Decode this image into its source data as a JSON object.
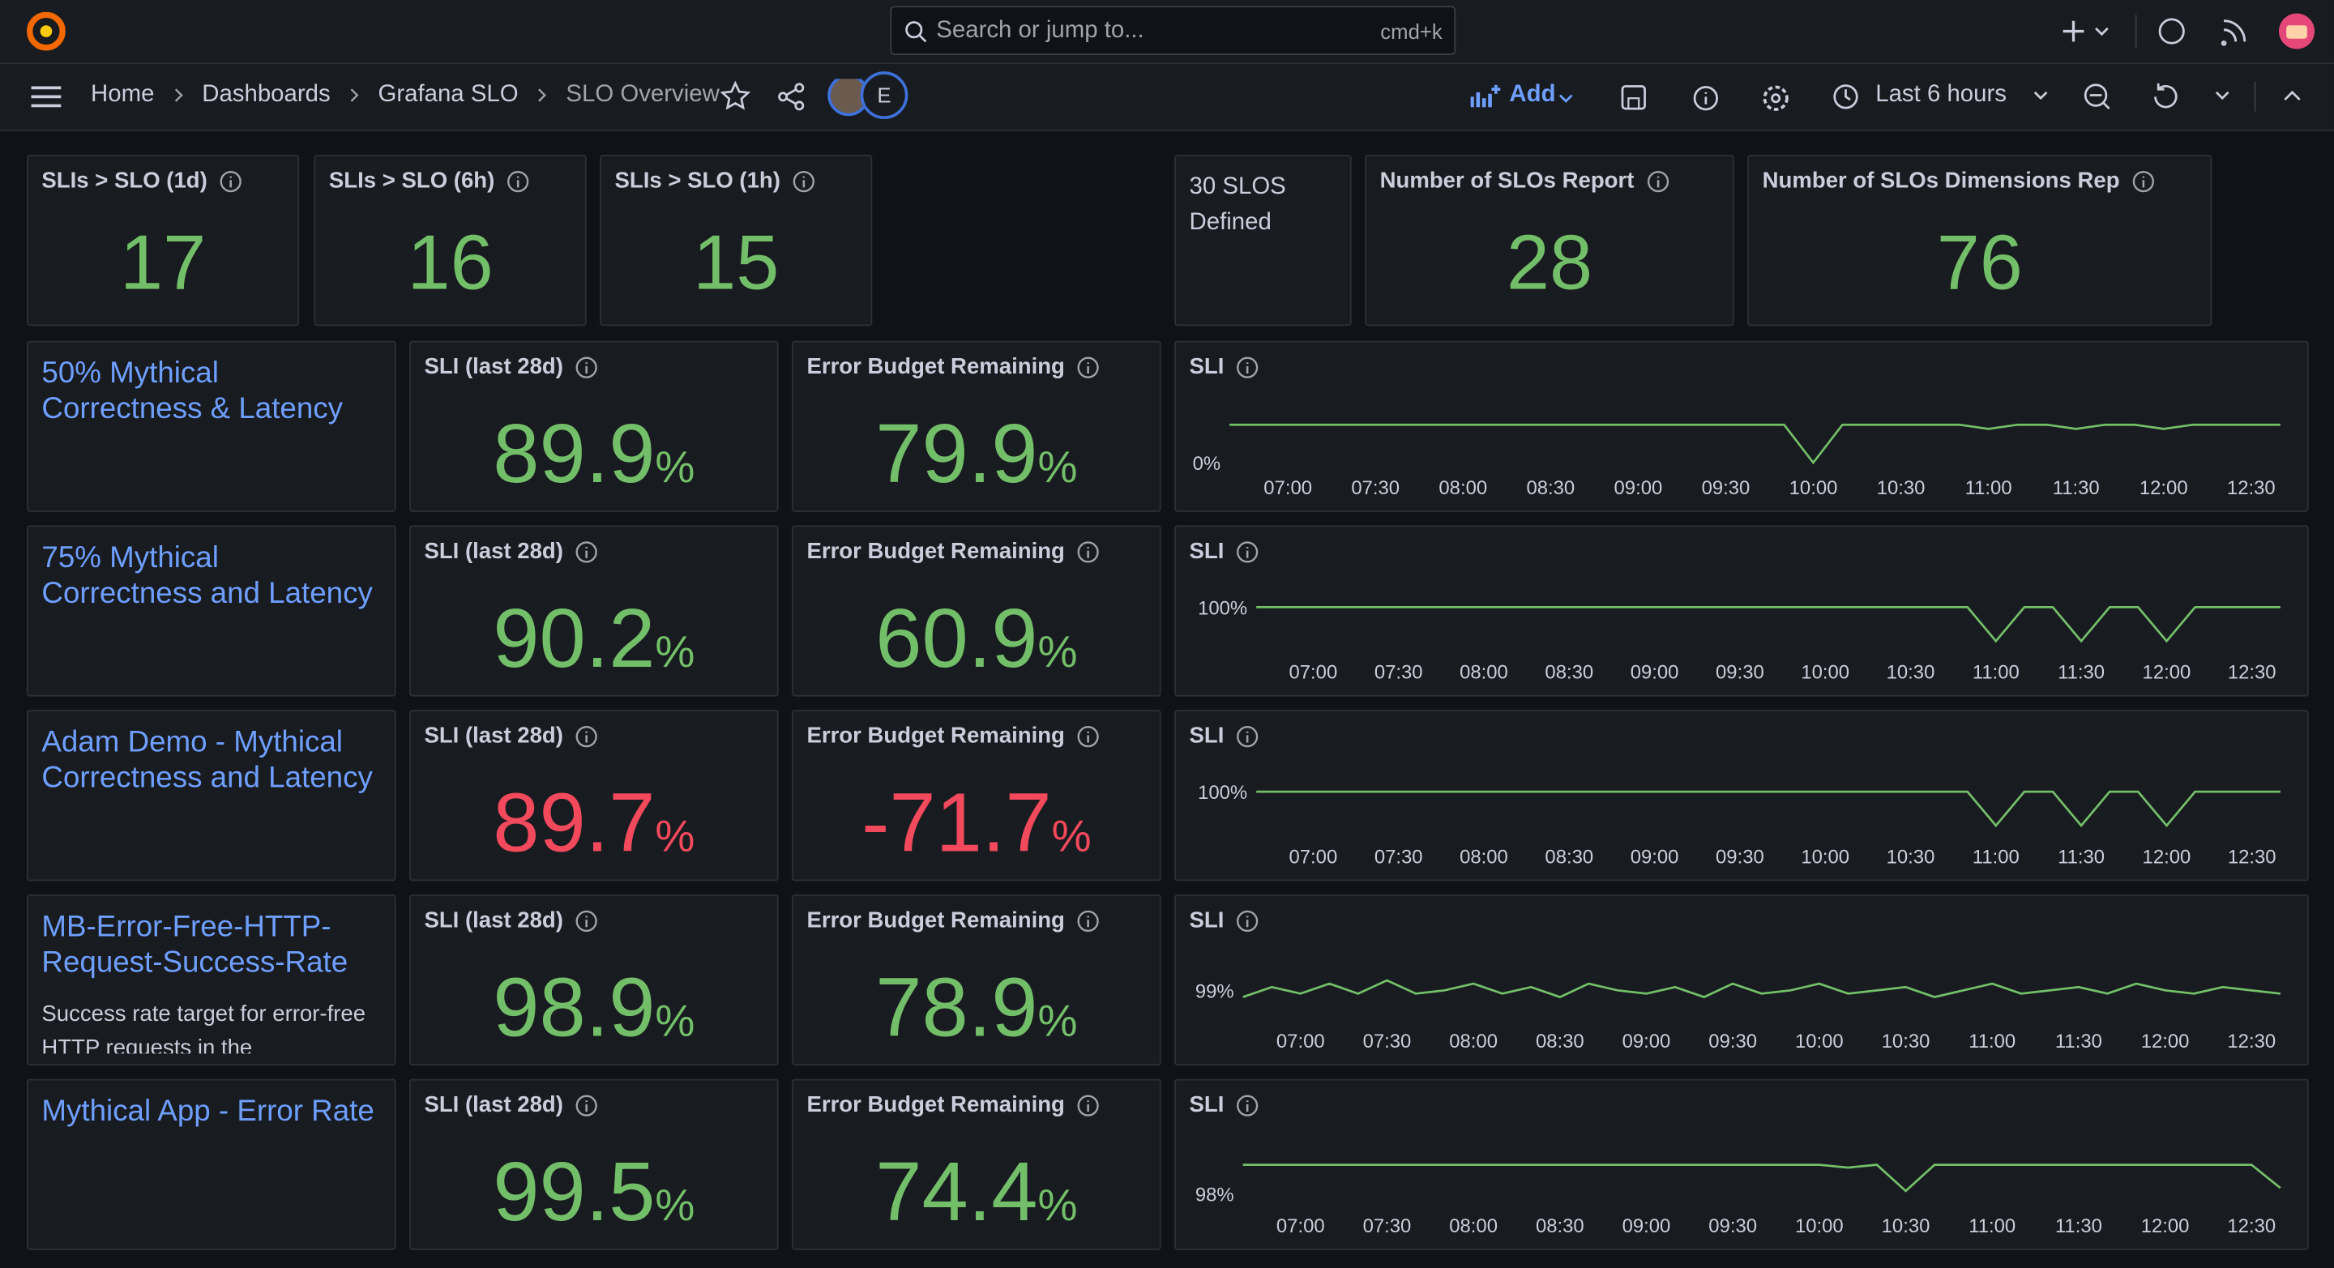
{
  "header": {
    "search_placeholder": "Search or jump to...",
    "search_shortcut": "cmd+k",
    "breadcrumbs": [
      "Home",
      "Dashboards",
      "Grafana SLO",
      "SLO Overview"
    ],
    "avatar_initial": "E",
    "add_button": "Add",
    "time_range": "Last 6 hours"
  },
  "top_stats": [
    {
      "title": "SLIs > SLO (1d)",
      "value": 17
    },
    {
      "title": "SLIs > SLO (6h)",
      "value": 16
    },
    {
      "title": "SLIs > SLO (1h)",
      "value": 15
    }
  ],
  "text_panel": {
    "lines": [
      "30 SLOS",
      "Defined"
    ]
  },
  "report_stats": [
    {
      "title": "Number of SLOs Report",
      "value": 28
    },
    {
      "title": "Number of SLOs Dimensions Rep",
      "value": 76
    }
  ],
  "rows": [
    {
      "name": "50% Mythical Correctness & Latency",
      "sli": {
        "title": "SLI (last 28d)",
        "value": 89.9,
        "unit": "%",
        "color": "#73bf69"
      },
      "budget": {
        "title": "Error Budget Remaining",
        "value": 79.9,
        "unit": "%",
        "color": "#73bf69"
      },
      "chart": {
        "type": "line",
        "title": "SLI",
        "color": "#73bf69",
        "ylim": [
          -20,
          155
        ],
        "yticks": [
          {
            "value": 0,
            "label": "0%"
          }
        ],
        "xticks": [
          "07:00",
          "07:30",
          "08:00",
          "08:30",
          "09:00",
          "09:30",
          "10:00",
          "10:30",
          "11:00",
          "11:30",
          "12:00",
          "12:30"
        ],
        "values": [
          99,
          99,
          99,
          99,
          99,
          99,
          99,
          99,
          99,
          99,
          99,
          99,
          99,
          99,
          99,
          99,
          99,
          99,
          99,
          99,
          0,
          99,
          99,
          99,
          99,
          99,
          88,
          99,
          99,
          88,
          99,
          99,
          88,
          99,
          99,
          99,
          99
        ]
      }
    },
    {
      "name": "75% Mythical Correctness and Latency",
      "sli": {
        "title": "SLI (last 28d)",
        "value": 90.2,
        "unit": "%",
        "color": "#73bf69"
      },
      "budget": {
        "title": "Error Budget Remaining",
        "value": 60.9,
        "unit": "%",
        "color": "#73bf69"
      },
      "chart": {
        "type": "line",
        "title": "SLI",
        "color": "#73bf69",
        "ylim": [
          95.8,
          101.7
        ],
        "yticks": [
          {
            "value": 100,
            "label": "100%"
          }
        ],
        "xticks": [
          "07:00",
          "07:30",
          "08:00",
          "08:30",
          "09:00",
          "09:30",
          "10:00",
          "10:30",
          "11:00",
          "11:30",
          "12:00",
          "12:30"
        ],
        "values": [
          100,
          100,
          100,
          100,
          100,
          100,
          100,
          100,
          100,
          100,
          100,
          100,
          100,
          100,
          100,
          100,
          100,
          100,
          100,
          100,
          100,
          100,
          100,
          100,
          100,
          100,
          97,
          100,
          100,
          97,
          100,
          100,
          97,
          100,
          100,
          100,
          100
        ]
      }
    },
    {
      "name": "Adam Demo - Mythical Correctness and Latency",
      "sli": {
        "title": "SLI (last 28d)",
        "value": 89.7,
        "unit": "%",
        "color": "#f2495c"
      },
      "budget": {
        "title": "Error Budget Remaining",
        "value": -71.7,
        "unit": "%",
        "color": "#f2495c"
      },
      "chart": {
        "type": "line",
        "title": "SLI",
        "color": "#73bf69",
        "ylim": [
          95.8,
          101.7
        ],
        "yticks": [
          {
            "value": 100,
            "label": "100%"
          }
        ],
        "xticks": [
          "07:00",
          "07:30",
          "08:00",
          "08:30",
          "09:00",
          "09:30",
          "10:00",
          "10:30",
          "11:00",
          "11:30",
          "12:00",
          "12:30"
        ],
        "values": [
          100,
          100,
          100,
          100,
          100,
          100,
          100,
          100,
          100,
          100,
          100,
          100,
          100,
          100,
          100,
          100,
          100,
          100,
          100,
          100,
          100,
          100,
          100,
          100,
          100,
          100,
          97,
          100,
          100,
          97,
          100,
          100,
          97,
          100,
          100,
          100,
          100
        ]
      }
    },
    {
      "name": "MB-Error-Free-HTTP-Request-Success-Rate",
      "description": "Success rate target for error-free HTTP requests in the",
      "sli": {
        "title": "SLI (last 28d)",
        "value": 98.9,
        "unit": "%",
        "color": "#73bf69"
      },
      "budget": {
        "title": "Error Budget Remaining",
        "value": 78.9,
        "unit": "%",
        "color": "#73bf69"
      },
      "chart": {
        "type": "line",
        "title": "SLI",
        "color": "#73bf69",
        "ylim": [
          98,
          100
        ],
        "yticks": [
          {
            "value": 99,
            "label": "99%"
          }
        ],
        "xticks": [
          "07:00",
          "07:30",
          "08:00",
          "08:30",
          "09:00",
          "09:30",
          "10:00",
          "10:30",
          "11:00",
          "11:30",
          "12:00",
          "12:30"
        ],
        "values": [
          98.8,
          99.1,
          98.9,
          99.2,
          98.9,
          99.3,
          98.9,
          99.0,
          99.2,
          98.9,
          99.1,
          98.8,
          99.2,
          99.0,
          98.9,
          99.1,
          98.8,
          99.2,
          98.9,
          99.0,
          99.2,
          98.9,
          99.0,
          99.1,
          98.8,
          99.0,
          99.2,
          98.9,
          99.0,
          99.1,
          98.9,
          99.2,
          99.0,
          98.9,
          99.1,
          99.0,
          98.9
        ]
      }
    },
    {
      "name": "Mythical App - Error Rate",
      "sli": {
        "title": "SLI (last 28d)",
        "value": 99.5,
        "unit": "%",
        "color": "#73bf69"
      },
      "budget": {
        "title": "Error Budget Remaining",
        "value": 74.4,
        "unit": "%",
        "color": "#73bf69"
      },
      "chart": {
        "type": "line",
        "title": "SLI",
        "color": "#73bf69",
        "ylim": [
          97.5,
          99.8
        ],
        "yticks": [
          {
            "value": 98,
            "label": "98%"
          }
        ],
        "xticks": [
          "07:00",
          "07:30",
          "08:00",
          "08:30",
          "09:00",
          "09:30",
          "10:00",
          "10:30",
          "11:00",
          "11:30",
          "12:00",
          "12:30"
        ],
        "values": [
          99,
          99,
          99,
          99,
          99,
          99,
          99,
          99,
          99,
          99,
          99,
          99,
          99,
          99,
          99,
          99,
          99,
          99,
          99,
          99,
          99,
          98.9,
          99,
          98.1,
          99,
          99,
          99,
          99,
          99,
          99,
          99,
          99,
          99,
          99,
          99,
          99,
          98.2
        ]
      }
    }
  ]
}
